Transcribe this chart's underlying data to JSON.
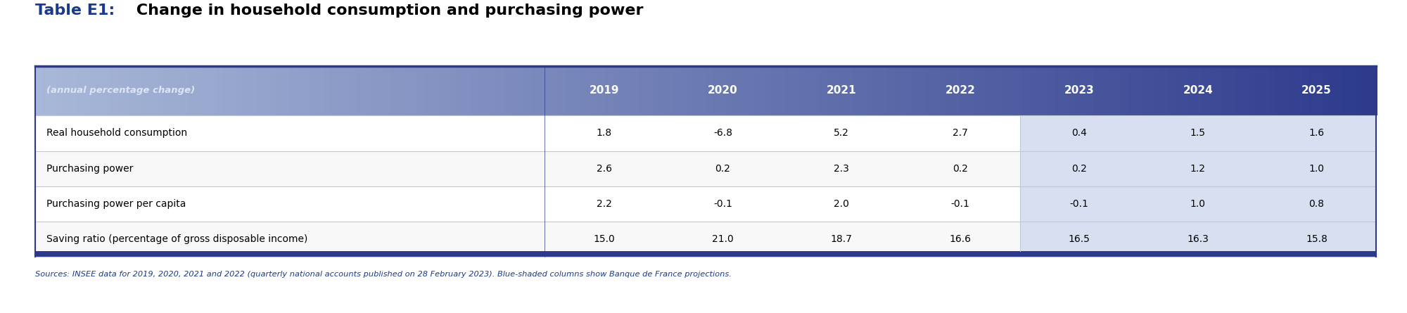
{
  "title_prefix": "Table E1:",
  "title_rest": " Change in household consumption and purchasing power",
  "subtitle": "(annual percentage change)",
  "columns": [
    "2019",
    "2020",
    "2021",
    "2022",
    "2023",
    "2024",
    "2025"
  ],
  "rows": [
    {
      "label": "Real household consumption",
      "values": [
        "1.8",
        "-6.8",
        "5.2",
        "2.7",
        "0.4",
        "1.5",
        "1.6"
      ]
    },
    {
      "label": "Purchasing power",
      "values": [
        "2.6",
        "0.2",
        "2.3",
        "0.2",
        "0.2",
        "1.2",
        "1.0"
      ]
    },
    {
      "label": "Purchasing power per capita",
      "values": [
        "2.2",
        "-0.1",
        "2.0",
        "-0.1",
        "-0.1",
        "1.0",
        "0.8"
      ]
    },
    {
      "label": "Saving ratio (percentage of gross disposable income)",
      "values": [
        "15.0",
        "21.0",
        "18.7",
        "16.6",
        "16.5",
        "16.3",
        "15.8"
      ]
    }
  ],
  "source_text": "Sources: INSEE data for 2019, 2020, 2021 and 2022 (quarterly national accounts published on 28 February 2023). Blue-shaded columns show Banque de France projections.",
  "header_bg_gradient_left": "#a8b8d8",
  "header_bg_gradient_right": "#2d3a8c",
  "projection_col_bg": "#d8dff0",
  "row_bg_white": "#ffffff",
  "row_bg_light": "#f5f5f5",
  "border_color_dark": "#2d3a8c",
  "border_color_light": "#c0c8d8",
  "title_blue": "#1a3a8c",
  "source_blue": "#1a3a8c",
  "header_text_color": "#ffffff",
  "header_italic_color": "#dde5f5",
  "num_projection_cols": 3,
  "figure_bg": "#ffffff"
}
